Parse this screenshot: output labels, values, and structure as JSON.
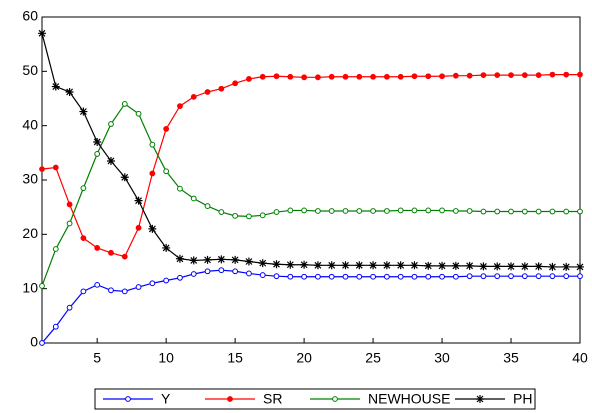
{
  "chart_data": {
    "type": "line",
    "x": [
      1,
      2,
      3,
      4,
      5,
      6,
      7,
      8,
      9,
      10,
      11,
      12,
      13,
      14,
      15,
      16,
      17,
      18,
      19,
      20,
      21,
      22,
      23,
      24,
      25,
      26,
      27,
      28,
      29,
      30,
      31,
      32,
      33,
      34,
      35,
      36,
      37,
      38,
      39,
      40
    ],
    "xlim": [
      1,
      40
    ],
    "xticks": [
      5,
      10,
      15,
      20,
      25,
      30,
      35,
      40
    ],
    "ylim": [
      0,
      60
    ],
    "yticks": [
      0,
      10,
      20,
      30,
      40,
      50,
      60
    ],
    "legend": "bottom",
    "series": [
      {
        "name": "Y",
        "color": "#0000ff",
        "marker": "circle-open",
        "values": [
          0,
          3,
          6.5,
          9.5,
          10.7,
          9.7,
          9.5,
          10.3,
          11,
          11.5,
          12,
          12.7,
          13.2,
          13.4,
          13.2,
          12.8,
          12.5,
          12.3,
          12.2,
          12.2,
          12.2,
          12.2,
          12.2,
          12.2,
          12.2,
          12.2,
          12.2,
          12.2,
          12.2,
          12.2,
          12.2,
          12.3,
          12.3,
          12.3,
          12.3,
          12.3,
          12.3,
          12.3,
          12.3,
          12.3
        ]
      },
      {
        "name": "SR",
        "color": "#ff0000",
        "marker": "circle-filled",
        "values": [
          32,
          32.3,
          25.5,
          19.3,
          17.5,
          16.6,
          15.9,
          21.2,
          31.2,
          39.4,
          43.6,
          45.3,
          46.2,
          46.8,
          47.8,
          48.6,
          49,
          49.1,
          49,
          48.9,
          48.9,
          49,
          49,
          49,
          49,
          49,
          49,
          49.1,
          49.1,
          49.1,
          49.2,
          49.2,
          49.3,
          49.3,
          49.3,
          49.3,
          49.3,
          49.4,
          49.4,
          49.4
        ]
      },
      {
        "name": "NEWHOUSE",
        "color": "#008000",
        "marker": "circle-open",
        "values": [
          10.5,
          17.3,
          22,
          28.5,
          34.8,
          40.3,
          44,
          42.2,
          36.5,
          31.6,
          28.4,
          26.6,
          25.2,
          24.1,
          23.4,
          23.3,
          23.5,
          24.1,
          24.4,
          24.4,
          24.3,
          24.3,
          24.3,
          24.3,
          24.3,
          24.3,
          24.4,
          24.4,
          24.4,
          24.4,
          24.3,
          24.3,
          24.2,
          24.2,
          24.2,
          24.2,
          24.2,
          24.2,
          24.2,
          24.2
        ]
      },
      {
        "name": "PH",
        "color": "#000000",
        "marker": "star",
        "values": [
          57,
          47.2,
          46.2,
          42.6,
          37,
          33.5,
          30.5,
          26.2,
          21,
          17.5,
          15.5,
          15.2,
          15.3,
          15.4,
          15.3,
          15,
          14.7,
          14.5,
          14.4,
          14.4,
          14.3,
          14.3,
          14.3,
          14.3,
          14.3,
          14.3,
          14.3,
          14.3,
          14.2,
          14.2,
          14.2,
          14.2,
          14.1,
          14.1,
          14.1,
          14.1,
          14.1,
          14,
          14,
          14
        ]
      }
    ]
  }
}
